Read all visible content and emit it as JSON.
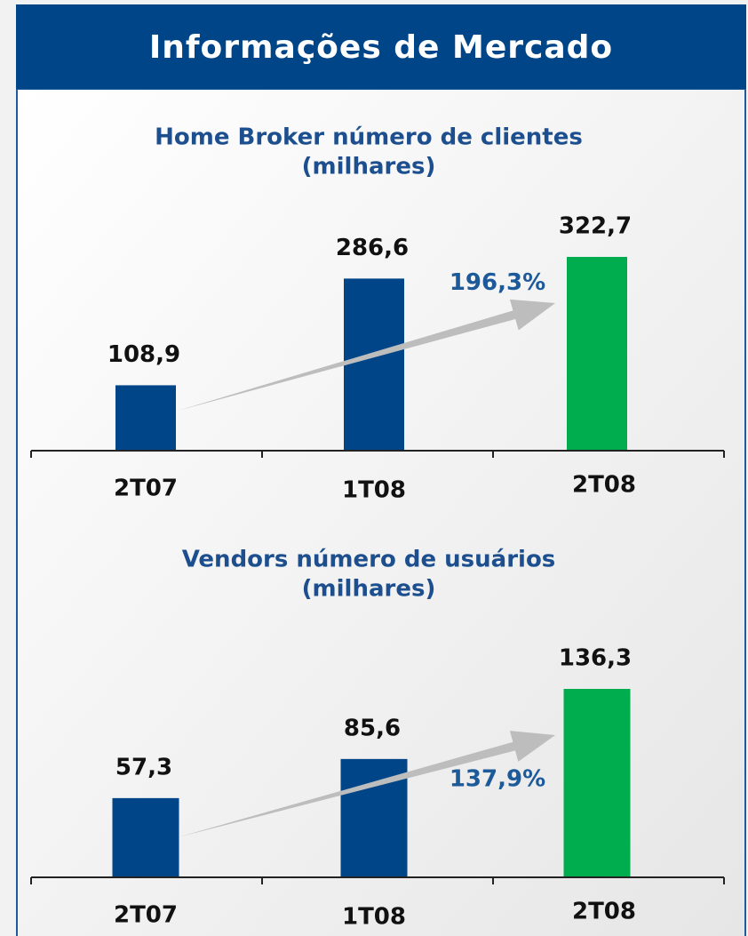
{
  "title": "Informações de Mercado",
  "chart_data": [
    {
      "type": "bar",
      "title": "Home Broker número de clientes",
      "subtitle": "(milhares)",
      "categories": [
        "2T07",
        "1T08",
        "2T08"
      ],
      "values": [
        108.9,
        286.6,
        322.7
      ],
      "value_labels": [
        "108,9",
        "286,6",
        "322,7"
      ],
      "colors": [
        "#004587",
        "#004587",
        "#00ad4e"
      ],
      "annotation": "196,3%"
    },
    {
      "type": "bar",
      "title": "Vendors número de usuários",
      "subtitle": "(milhares)",
      "categories": [
        "2T07",
        "1T08",
        "2T08"
      ],
      "values": [
        57.3,
        85.6,
        136.3
      ],
      "value_labels": [
        "57,3",
        "85,6",
        "136,3"
      ],
      "colors": [
        "#004587",
        "#004587",
        "#00ad4e"
      ],
      "annotation": "137,9%"
    }
  ]
}
